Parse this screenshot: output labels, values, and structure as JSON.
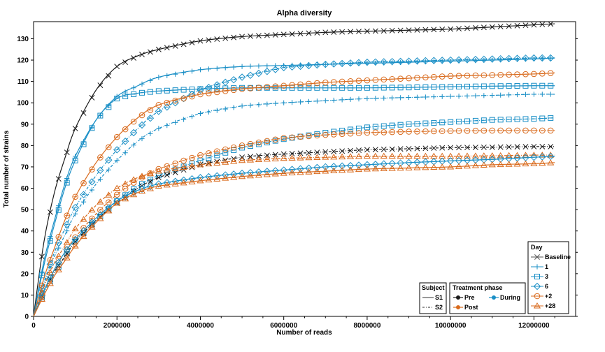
{
  "chart_data": {
    "type": "line",
    "title": "Alpha diversity",
    "xlabel": "Number of reads",
    "ylabel": "Total number of strains",
    "xlim": [
      0,
      13000000
    ],
    "ylim": [
      0,
      138
    ],
    "xticks": [
      0,
      2000000,
      4000000,
      6000000,
      8000000,
      10000000,
      12000000
    ],
    "xtick_labels": [
      "0",
      "2000000",
      "4000000",
      "6000000",
      "8000000",
      "10000000",
      "12000000"
    ],
    "yticks": [
      0,
      10,
      20,
      30,
      40,
      50,
      60,
      70,
      80,
      90,
      100,
      110,
      120,
      130
    ],
    "ytick_labels": [
      "0",
      "10",
      "20",
      "30",
      "40",
      "50",
      "60",
      "70",
      "80",
      "90",
      "100",
      "110",
      "120",
      "130"
    ],
    "grid": false,
    "colors": {
      "Pre": "#1a1a1a",
      "During": "#1a8fc6",
      "Post": "#d96a1c"
    },
    "legends": {
      "subject": {
        "title": "Subject",
        "items": [
          "S1",
          "S2"
        ]
      },
      "phase": {
        "title": "Treatment phase",
        "items": [
          "Pre",
          "During",
          "Post"
        ]
      },
      "day": {
        "title": "Day",
        "items": [
          "Baseline",
          "1",
          "3",
          "6",
          "+2",
          "+28"
        ]
      }
    },
    "x": [
      0,
      250000,
      500000,
      750000,
      1000000,
      1500000,
      2000000,
      2500000,
      3000000,
      4000000,
      5000000,
      6000000,
      7000000,
      8000000,
      9000000,
      10000000,
      11000000,
      12000000,
      12500000
    ],
    "series": [
      {
        "subject": "S1",
        "phase": "Pre",
        "day": "Baseline",
        "values": [
          0,
          35,
          58,
          74,
          88,
          106,
          117,
          122,
          125,
          129,
          131,
          132,
          133,
          133.5,
          134,
          134.5,
          135.5,
          136.5,
          137
        ]
      },
      {
        "subject": "S1",
        "phase": "During",
        "day": "1",
        "values": [
          0,
          26,
          45,
          62,
          75,
          92,
          103,
          108,
          112,
          115.5,
          117,
          117.5,
          118,
          118.5,
          119,
          119.5,
          120,
          120.5,
          121
        ]
      },
      {
        "subject": "S1",
        "phase": "During",
        "day": "3",
        "values": [
          0,
          24,
          43,
          60,
          73,
          92,
          102,
          104.5,
          105.5,
          106.5,
          107,
          107,
          107,
          107,
          107.2,
          107.5,
          107.8,
          108,
          108
        ]
      },
      {
        "subject": "S2",
        "phase": "During",
        "day": "6",
        "values": [
          0,
          16,
          30,
          41,
          51,
          66,
          78,
          88,
          96,
          106,
          112,
          116.5,
          118,
          119,
          119.5,
          120,
          120.5,
          121,
          121
        ]
      },
      {
        "subject": "S1",
        "phase": "Post",
        "day": "+2",
        "values": [
          0,
          18,
          32,
          45,
          56,
          72,
          84,
          93,
          99,
          104,
          106.5,
          108,
          109.5,
          110.5,
          111.5,
          112.5,
          113,
          113.5,
          114
        ]
      },
      {
        "subject": "S2",
        "phase": "During",
        "day": "1",
        "values": [
          0,
          15,
          28,
          38,
          48,
          62,
          73,
          82,
          88,
          95,
          98.5,
          100,
          101,
          102,
          102.5,
          103,
          103.5,
          104,
          104
        ]
      },
      {
        "subject": "S2",
        "phase": "During",
        "day": "3",
        "values": [
          0,
          11,
          20,
          28,
          35,
          45,
          54,
          61,
          66,
          73,
          79,
          83,
          86,
          88.5,
          90,
          91,
          92,
          92.5,
          93
        ]
      },
      {
        "subject": "S2",
        "phase": "Post",
        "day": "+2",
        "values": [
          0,
          12,
          22,
          30,
          37,
          48,
          57,
          64,
          69,
          75.5,
          80,
          83.5,
          85,
          86,
          86.5,
          86.8,
          87,
          87,
          87
        ]
      },
      {
        "subject": "S2",
        "phase": "Pre",
        "day": "Baseline",
        "values": [
          0,
          12,
          21,
          28,
          35,
          45,
          53,
          60,
          65,
          71,
          74.5,
          76,
          77,
          78,
          78.5,
          79,
          79.2,
          79.5,
          79.5
        ]
      },
      {
        "subject": "S2",
        "phase": "Post",
        "day": "+28",
        "values": [
          0,
          14,
          25,
          33,
          41,
          52,
          60,
          65,
          68,
          71,
          73,
          74,
          74.5,
          75,
          75,
          75,
          75.2,
          75.5,
          75.5
        ]
      },
      {
        "subject": "S1",
        "phase": "During",
        "day": "6",
        "values": [
          0,
          12,
          22,
          30,
          36,
          46,
          54,
          59,
          62,
          65,
          67,
          68.5,
          70,
          71,
          72,
          72.8,
          73.5,
          74.5,
          75
        ]
      },
      {
        "subject": "S1",
        "phase": "Post",
        "day": "+28",
        "values": [
          0,
          10,
          19,
          26,
          33,
          44,
          53,
          58,
          61,
          63.5,
          65.5,
          67,
          68,
          69,
          69.5,
          70,
          71,
          71.5,
          72
        ]
      }
    ]
  }
}
